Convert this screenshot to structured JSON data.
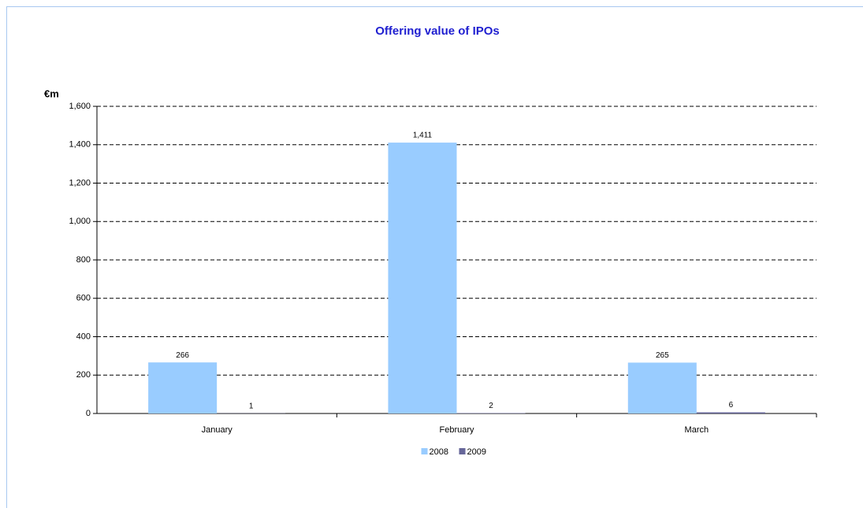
{
  "chart_data": {
    "type": "bar",
    "title": "Offering value of IPOs",
    "y_label": "€m",
    "categories": [
      "January",
      "February",
      "March"
    ],
    "series": [
      {
        "name": "2008",
        "color": "#99ccff",
        "values": [
          266,
          1411,
          265
        ],
        "value_labels": [
          "266",
          "1,411",
          "265"
        ]
      },
      {
        "name": "2009",
        "color": "#666699",
        "values": [
          1,
          2,
          6
        ]
      }
    ],
    "ylim": [
      0,
      1600
    ],
    "yticks": [
      0,
      200,
      400,
      600,
      800,
      {
        "value": 1000,
        "label": "1,000"
      },
      {
        "value": 1200,
        "label": "1,200"
      },
      {
        "value": 1400,
        "label": "1,400"
      },
      {
        "value": 1600,
        "label": "1,600"
      }
    ],
    "grid": true,
    "legend": "bottom"
  }
}
